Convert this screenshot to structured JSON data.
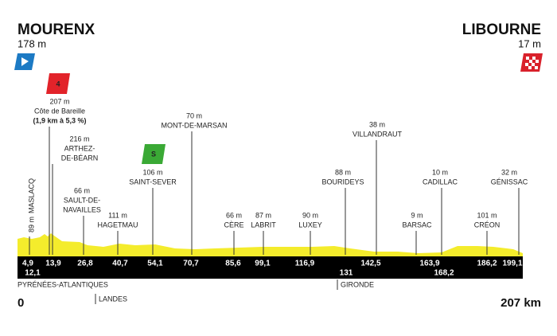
{
  "start": {
    "name": "MOURENX",
    "altitude": "178 m",
    "km": "0"
  },
  "finish": {
    "name": "LIBOURNE",
    "altitude": "17 m",
    "km": "207 km"
  },
  "waypoints": [
    {
      "km": "4,9",
      "altitude": "89 m",
      "name": [
        "MASLACQ"
      ]
    },
    {
      "km": "12,1",
      "altitude": "207 m",
      "name": [
        "Côte de Bareille"
      ],
      "detail": "(1,9 km à 5,3 %)",
      "category": "4"
    },
    {
      "km": "13,9",
      "altitude": "216 m",
      "name": [
        "ARTHEZ-",
        "DE-BÉARN"
      ]
    },
    {
      "km": "26,8",
      "altitude": "66 m",
      "name": [
        "SAULT-DE-",
        "NAVAILLES"
      ]
    },
    {
      "km": "40,7",
      "altitude": "111 m",
      "name": [
        "HAGETMAU"
      ]
    },
    {
      "km": "54,1",
      "altitude": "106 m",
      "name": [
        "SAINT-SEVER"
      ],
      "sprint": "S"
    },
    {
      "km": "70,7",
      "altitude": "70 m",
      "name": [
        "MONT-DE-MARSAN"
      ]
    },
    {
      "km": "85,6",
      "altitude": "66 m",
      "name": [
        "CÈRE"
      ]
    },
    {
      "km": "99,1",
      "altitude": "87 m",
      "name": [
        "LABRIT"
      ]
    },
    {
      "km": "116,9",
      "altitude": "90 m",
      "name": [
        "LUXEY"
      ]
    },
    {
      "km": "131",
      "altitude": "88 m",
      "name": [
        "BOURIDEYS"
      ]
    },
    {
      "km": "142,5",
      "altitude": "38 m",
      "name": [
        "VILLANDRAUT"
      ]
    },
    {
      "km": "163,9",
      "altitude": "9 m",
      "name": [
        "BARSAC"
      ]
    },
    {
      "km": "168,2",
      "altitude": "10 m",
      "name": [
        "CADILLAC"
      ]
    },
    {
      "km": "186,2",
      "altitude": "101 m",
      "name": [
        "CRÉON"
      ]
    },
    {
      "km": "199,1",
      "altitude": "32 m",
      "name": [
        "GÉNISSAC"
      ]
    }
  ],
  "regions": [
    "PYRÉNÉES-ATLANTIQUES",
    "LANDES",
    "GIRONDE"
  ]
}
